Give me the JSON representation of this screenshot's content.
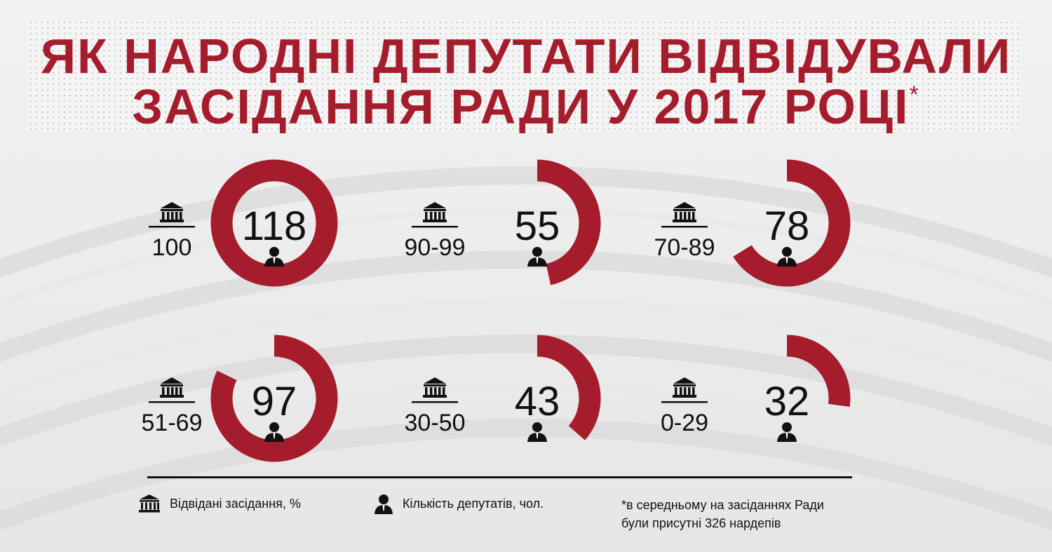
{
  "title_line1": "ЯК НАРОДНІ ДЕПУТАТИ ВІДВІДУВАЛИ",
  "title_line2": "ЗАСІДАННЯ РАДИ У 2017 РОЦІ",
  "title_asterisk": "*",
  "colors": {
    "accent": "#a51d2d",
    "text": "#111111"
  },
  "icons": {
    "building": "parliament-building-icon",
    "person": "person-icon"
  },
  "chart_data": {
    "type": "radial_bar",
    "total": 326,
    "categories": [
      "100",
      "90-99",
      "70-89",
      "51-69",
      "30-50",
      "0-29"
    ],
    "values": [
      118,
      55,
      78,
      97,
      43,
      32
    ]
  },
  "legend": {
    "attendance_label": "Відвідані засідання, %",
    "deputies_label": "Кількість депутатів, чол."
  },
  "footnote": {
    "line1": "*в середньому на засіданнях Ради",
    "line2": "були присутні 326 нардепів"
  }
}
